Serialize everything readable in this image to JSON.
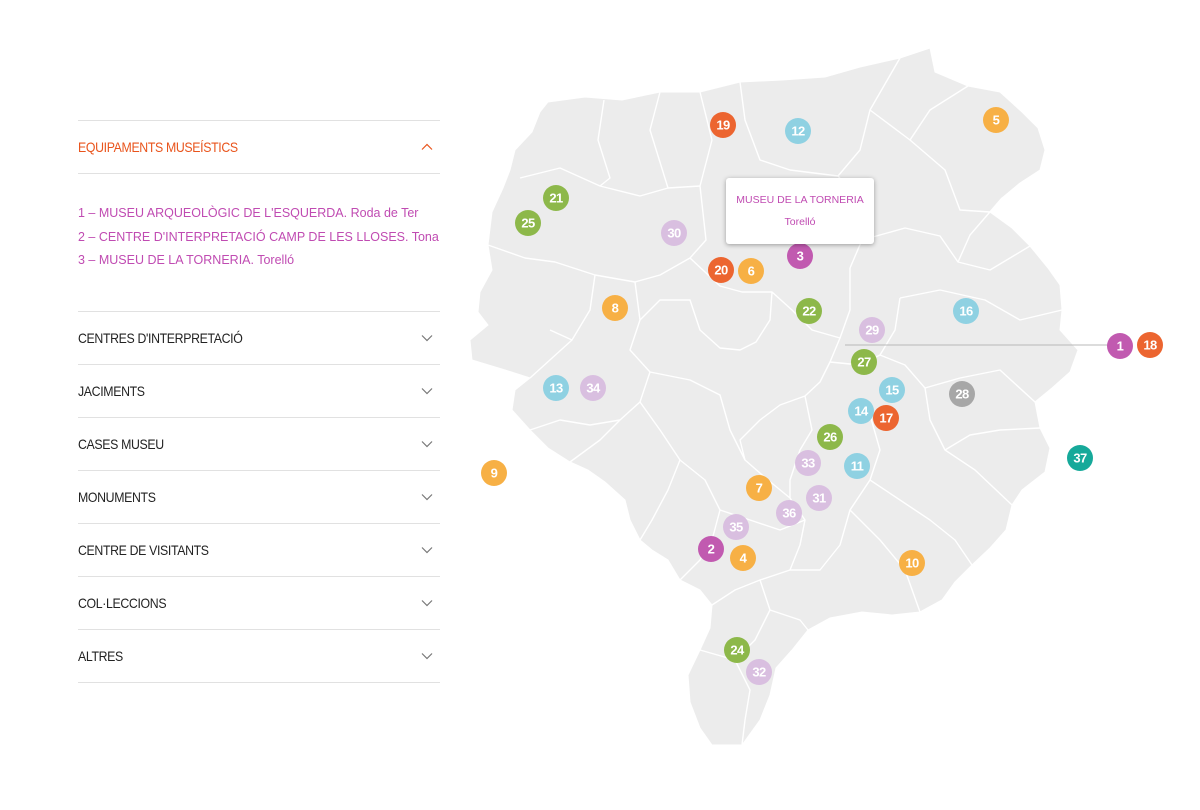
{
  "colors": {
    "accent_orange": "#e9541c",
    "item_pink": "#c04bb2",
    "map_fill": "#ececec",
    "map_border": "#ffffff",
    "marker_purple": "#c15ab0",
    "marker_orange_red": "#ec6530",
    "marker_yellow": "#f7b045",
    "marker_light_blue": "#8fd1e2",
    "marker_green": "#8db84a",
    "marker_lavender": "#d9bfe0",
    "marker_gray": "#a7a7a7",
    "marker_teal": "#16a99a"
  },
  "sidebar": {
    "sections": [
      {
        "title": "EQUIPAMENTS MUSEÍSTICS",
        "open": true,
        "items": [
          "1 – MUSEU ARQUEOLÒGIC DE L'ESQUERDA. Roda de Ter",
          "2 – CENTRE D'INTERPRETACIÓ CAMP DE LES LLOSES. Tona",
          "3 – MUSEU DE LA TORNERIA. Torelló"
        ]
      },
      {
        "title": "CENTRES D'INTERPRETACIÓ",
        "open": false
      },
      {
        "title": "JACIMENTS",
        "open": false
      },
      {
        "title": "CASES MUSEU",
        "open": false
      },
      {
        "title": "MONUMENTS",
        "open": false
      },
      {
        "title": "CENTRE DE VISITANTS",
        "open": false
      },
      {
        "title": "COL·LECCIONS",
        "open": false
      },
      {
        "title": "ALTRES",
        "open": false
      }
    ]
  },
  "tooltip": {
    "name": "MUSEU DE LA TORNERIA",
    "town": "Torelló"
  },
  "markers": [
    {
      "label": "1",
      "category": "purple"
    },
    {
      "label": "2",
      "category": "purple"
    },
    {
      "label": "3",
      "category": "purple"
    },
    {
      "label": "4",
      "category": "yellow"
    },
    {
      "label": "5",
      "category": "yellow"
    },
    {
      "label": "6",
      "category": "yellow"
    },
    {
      "label": "7",
      "category": "yellow"
    },
    {
      "label": "8",
      "category": "yellow"
    },
    {
      "label": "9",
      "category": "yellow"
    },
    {
      "label": "10",
      "category": "yellow"
    },
    {
      "label": "11",
      "category": "light_blue"
    },
    {
      "label": "12",
      "category": "light_blue"
    },
    {
      "label": "13",
      "category": "light_blue"
    },
    {
      "label": "14",
      "category": "light_blue"
    },
    {
      "label": "15",
      "category": "light_blue"
    },
    {
      "label": "16",
      "category": "light_blue"
    },
    {
      "label": "17",
      "category": "orange_red"
    },
    {
      "label": "18",
      "category": "orange_red"
    },
    {
      "label": "19",
      "category": "orange_red"
    },
    {
      "label": "20",
      "category": "orange_red"
    },
    {
      "label": "21",
      "category": "green"
    },
    {
      "label": "22",
      "category": "green"
    },
    {
      "label": "24",
      "category": "green"
    },
    {
      "label": "25",
      "category": "green"
    },
    {
      "label": "26",
      "category": "green"
    },
    {
      "label": "27",
      "category": "green"
    },
    {
      "label": "28",
      "category": "gray"
    },
    {
      "label": "29",
      "category": "lavender"
    },
    {
      "label": "30",
      "category": "lavender"
    },
    {
      "label": "31",
      "category": "lavender"
    },
    {
      "label": "32",
      "category": "lavender"
    },
    {
      "label": "33",
      "category": "lavender"
    },
    {
      "label": "34",
      "category": "lavender"
    },
    {
      "label": "35",
      "category": "lavender"
    },
    {
      "label": "36",
      "category": "lavender"
    },
    {
      "label": "37",
      "category": "teal"
    }
  ]
}
